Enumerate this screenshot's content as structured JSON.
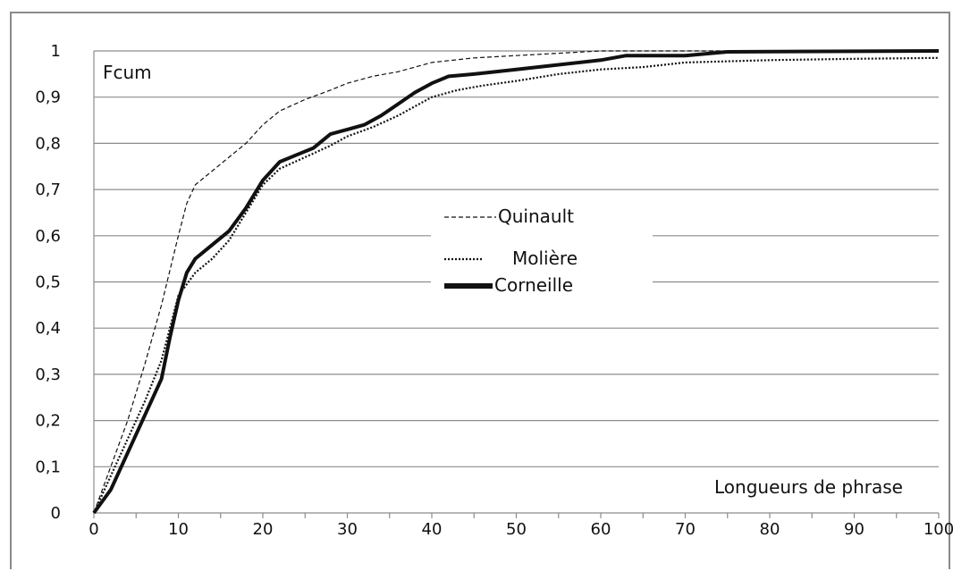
{
  "chart_data": {
    "type": "line",
    "title": "",
    "ylabel": "Fcum",
    "xlabel": "Longueurs de phrase",
    "xlim": [
      0,
      100
    ],
    "ylim": [
      0,
      1
    ],
    "grid": "horizontal",
    "legend_position": "center",
    "x_ticks": [
      "0",
      "10",
      "20",
      "30",
      "40",
      "50",
      "60",
      "70",
      "80",
      "90",
      "100"
    ],
    "y_ticks": [
      "0",
      "0,1",
      "0,2",
      "0,3",
      "0,4",
      "0,5",
      "0,6",
      "0,7",
      "0,8",
      "0,9",
      "1"
    ],
    "series": [
      {
        "name": "Quinault",
        "style": "dashed",
        "color": "#111111",
        "points": [
          [
            0,
            0
          ],
          [
            2,
            0.1
          ],
          [
            4,
            0.2
          ],
          [
            6,
            0.32
          ],
          [
            8,
            0.45
          ],
          [
            10,
            0.6
          ],
          [
            11,
            0.67
          ],
          [
            12,
            0.71
          ],
          [
            14,
            0.74
          ],
          [
            16,
            0.77
          ],
          [
            18,
            0.8
          ],
          [
            20,
            0.84
          ],
          [
            22,
            0.87
          ],
          [
            25,
            0.895
          ],
          [
            28,
            0.915
          ],
          [
            30,
            0.93
          ],
          [
            33,
            0.945
          ],
          [
            36,
            0.955
          ],
          [
            40,
            0.975
          ],
          [
            45,
            0.985
          ],
          [
            50,
            0.99
          ],
          [
            55,
            0.995
          ],
          [
            60,
            1.0
          ],
          [
            100,
            1.0
          ]
        ]
      },
      {
        "name": "Molière",
        "style": "dotted",
        "color": "#111111",
        "points": [
          [
            0,
            0
          ],
          [
            2,
            0.08
          ],
          [
            4,
            0.16
          ],
          [
            6,
            0.24
          ],
          [
            8,
            0.33
          ],
          [
            9,
            0.4
          ],
          [
            10,
            0.47
          ],
          [
            12,
            0.52
          ],
          [
            14,
            0.55
          ],
          [
            16,
            0.59
          ],
          [
            18,
            0.65
          ],
          [
            20,
            0.71
          ],
          [
            22,
            0.745
          ],
          [
            25,
            0.77
          ],
          [
            28,
            0.795
          ],
          [
            30,
            0.815
          ],
          [
            33,
            0.835
          ],
          [
            36,
            0.86
          ],
          [
            40,
            0.9
          ],
          [
            43,
            0.915
          ],
          [
            46,
            0.925
          ],
          [
            50,
            0.935
          ],
          [
            55,
            0.95
          ],
          [
            60,
            0.96
          ],
          [
            65,
            0.965
          ],
          [
            70,
            0.975
          ],
          [
            80,
            0.98
          ],
          [
            90,
            0.983
          ],
          [
            100,
            0.985
          ]
        ]
      },
      {
        "name": "Corneille",
        "style": "solid",
        "color": "#111111",
        "points": [
          [
            0,
            0
          ],
          [
            2,
            0.05
          ],
          [
            4,
            0.13
          ],
          [
            6,
            0.21
          ],
          [
            8,
            0.29
          ],
          [
            9,
            0.38
          ],
          [
            10,
            0.46
          ],
          [
            11,
            0.52
          ],
          [
            12,
            0.55
          ],
          [
            14,
            0.58
          ],
          [
            16,
            0.61
          ],
          [
            18,
            0.66
          ],
          [
            20,
            0.72
          ],
          [
            22,
            0.76
          ],
          [
            24,
            0.775
          ],
          [
            26,
            0.79
          ],
          [
            28,
            0.82
          ],
          [
            30,
            0.83
          ],
          [
            32,
            0.84
          ],
          [
            34,
            0.86
          ],
          [
            36,
            0.885
          ],
          [
            38,
            0.91
          ],
          [
            40,
            0.93
          ],
          [
            42,
            0.945
          ],
          [
            45,
            0.95
          ],
          [
            50,
            0.96
          ],
          [
            55,
            0.97
          ],
          [
            60,
            0.98
          ],
          [
            63,
            0.99
          ],
          [
            70,
            0.99
          ],
          [
            75,
            0.998
          ],
          [
            100,
            1.0
          ]
        ]
      }
    ]
  }
}
